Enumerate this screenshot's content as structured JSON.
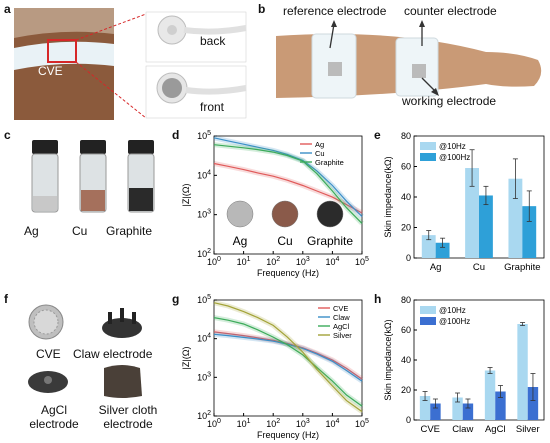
{
  "panels": {
    "a": {
      "label": "a",
      "cve": "CVE",
      "back": "back",
      "front": "front"
    },
    "b": {
      "label": "b",
      "reference": "reference electrode",
      "counter": "counter electrode",
      "working": "working electrode"
    },
    "c": {
      "label": "c",
      "vials": [
        "Ag",
        "Cu",
        "Graphite"
      ]
    },
    "d": {
      "label": "d"
    },
    "e": {
      "label": "e"
    },
    "f": {
      "label": "f",
      "items": [
        "CVE",
        "Claw electrode",
        "AgCl electrode",
        "Silver cloth electrode"
      ]
    },
    "g": {
      "label": "g"
    },
    "h": {
      "label": "h"
    }
  },
  "colors": {
    "red": "#e05a5a",
    "blue": "#3a8fc8",
    "green": "#3cab5a",
    "purple": "#8b6cc6",
    "olive": "#a3a338",
    "light_blue": "#a9d8f0",
    "mid_blue": "#2ea0d8",
    "dark_blue": "#3b6fd1"
  },
  "chart_data": [
    {
      "id": "d",
      "type": "line",
      "xscale": "log",
      "yscale": "log",
      "xlabel": "Frequency (Hz)",
      "ylabel": "|Z|(Ω)",
      "xlim": [
        1,
        100000
      ],
      "ylim": [
        100,
        100000
      ],
      "xticks": [
        "10^0",
        "10^1",
        "10^2",
        "10^3",
        "10^4",
        "10^5"
      ],
      "yticks": [
        "10^2",
        "10^3",
        "10^4",
        "10^5"
      ],
      "inset_labels": [
        "Ag",
        "Cu",
        "Graphite"
      ],
      "series": [
        {
          "name": "Ag",
          "color": "#e05a5a",
          "x": [
            1,
            3,
            10,
            30,
            100,
            300,
            1000,
            3000,
            10000,
            30000,
            100000
          ],
          "y": [
            20000,
            17000,
            14000,
            11500,
            9500,
            7500,
            5500,
            4000,
            2800,
            1800,
            1100
          ]
        },
        {
          "name": "Cu",
          "color": "#3a8fc8",
          "x": [
            1,
            3,
            10,
            30,
            100,
            300,
            1000,
            3000,
            10000,
            30000,
            100000
          ],
          "y": [
            90000,
            75000,
            62000,
            52000,
            43000,
            34000,
            24000,
            13000,
            5500,
            2200,
            900
          ]
        },
        {
          "name": "Graphite",
          "color": "#3cab5a",
          "x": [
            1,
            3,
            10,
            30,
            100,
            300,
            1000,
            3000,
            10000,
            30000,
            100000
          ],
          "y": [
            60000,
            55000,
            50000,
            45000,
            39000,
            32000,
            23000,
            11000,
            4000,
            1500,
            600
          ]
        }
      ]
    },
    {
      "id": "e",
      "type": "bar",
      "ylabel": "Skin impedance(kΩ)",
      "ylim": [
        0,
        80
      ],
      "yticks": [
        "0",
        "20",
        "40",
        "60",
        "80"
      ],
      "categories": [
        "Ag",
        "Cu",
        "Graphite"
      ],
      "series": [
        {
          "name": "@10Hz",
          "color": "#a9d8f0",
          "values": [
            15,
            59,
            52
          ],
          "errors": [
            3,
            12,
            13
          ]
        },
        {
          "name": "@100Hz",
          "color": "#2ea0d8",
          "values": [
            10,
            41,
            34
          ],
          "errors": [
            3,
            6,
            10
          ]
        }
      ]
    },
    {
      "id": "g",
      "type": "line",
      "xscale": "log",
      "yscale": "log",
      "xlabel": "Frequency (Hz)",
      "ylabel": "|Z|(Ω)",
      "xlim": [
        1,
        100000
      ],
      "ylim": [
        100,
        100000
      ],
      "xticks": [
        "10^0",
        "10^1",
        "10^2",
        "10^3",
        "10^4",
        "10^5"
      ],
      "yticks": [
        "10^2",
        "10^3",
        "10^4",
        "10^5"
      ],
      "series": [
        {
          "name": "CVE",
          "color": "#e05a5a",
          "x": [
            1,
            3,
            10,
            30,
            100,
            300,
            1000,
            3000,
            10000,
            30000,
            100000
          ],
          "y": [
            15000,
            13500,
            12000,
            10500,
            9000,
            7500,
            5800,
            4200,
            2800,
            1700,
            900
          ]
        },
        {
          "name": "Claw",
          "color": "#3a8fc8",
          "x": [
            1,
            3,
            10,
            30,
            100,
            300,
            1000,
            3000,
            10000,
            30000,
            100000
          ],
          "y": [
            13000,
            12000,
            10800,
            9800,
            8600,
            7200,
            5600,
            4000,
            2600,
            1500,
            800
          ]
        },
        {
          "name": "AgCl",
          "color": "#3cab5a",
          "x": [
            1,
            3,
            10,
            30,
            100,
            300,
            1000,
            3000,
            10000,
            30000,
            100000
          ],
          "y": [
            35000,
            30000,
            24000,
            17000,
            11000,
            7000,
            3800,
            1800,
            800,
            350,
            180
          ]
        },
        {
          "name": "Silver",
          "color": "#a3a338",
          "x": [
            1,
            3,
            10,
            30,
            100,
            300,
            1000,
            3000,
            10000,
            30000,
            100000
          ],
          "y": [
            85000,
            70000,
            50000,
            35000,
            22000,
            11000,
            4500,
            1600,
            600,
            250,
            130
          ]
        }
      ]
    },
    {
      "id": "h",
      "type": "bar",
      "ylabel": "Skin impedance(kΩ)",
      "ylim": [
        0,
        80
      ],
      "yticks": [
        "0",
        "20",
        "40",
        "60",
        "80"
      ],
      "categories": [
        "CVE",
        "Claw",
        "AgCl",
        "Silver"
      ],
      "series": [
        {
          "name": "@10Hz",
          "color": "#a9d8f0",
          "values": [
            16,
            15,
            33,
            64
          ],
          "errors": [
            3,
            3,
            2,
            1
          ]
        },
        {
          "name": "@100Hz",
          "color": "#3b6fd1",
          "values": [
            11,
            11,
            19,
            22
          ],
          "errors": [
            3,
            3,
            4,
            9
          ]
        }
      ]
    }
  ]
}
